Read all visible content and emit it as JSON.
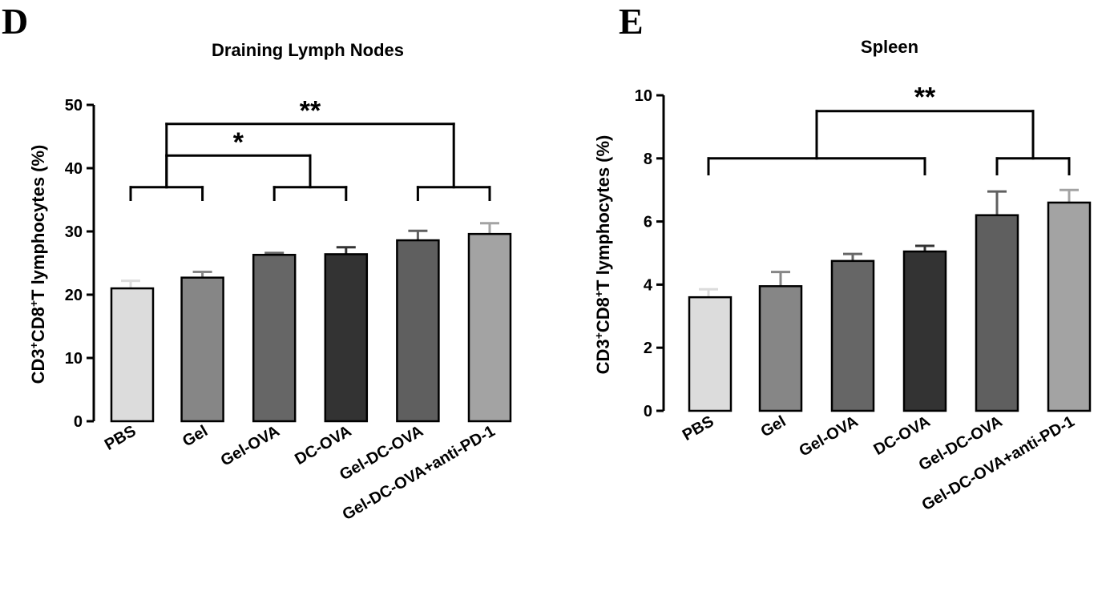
{
  "chart_data": [
    {
      "type": "bar",
      "panel": "D",
      "title": "Draining Lymph Nodes",
      "xlabel": "",
      "ylabel_parts": [
        "CD3",
        "+",
        "CD8",
        "+",
        "T lymphocytes (%)"
      ],
      "ylim": [
        0,
        50
      ],
      "yticks": [
        0,
        10,
        20,
        30,
        40,
        50
      ],
      "categories": [
        "PBS",
        "Gel",
        "Gel-OVA",
        "DC-OVA",
        "Gel-DC-OVA",
        "Gel-DC-OVA+anti-PD-1"
      ],
      "values": [
        21.0,
        22.7,
        26.3,
        26.4,
        28.6,
        29.6
      ],
      "errors": [
        1.2,
        0.9,
        0.3,
        1.1,
        1.5,
        1.7
      ],
      "colors": [
        "#dcdcdc",
        "#868686",
        "#666666",
        "#333333",
        "#5f5f5f",
        "#a3a3a3"
      ],
      "significance": [
        {
          "label": "*"
        },
        {
          "label": "**"
        }
      ]
    },
    {
      "type": "bar",
      "panel": "E",
      "title": "Spleen",
      "xlabel": "",
      "ylabel_parts": [
        "CD3",
        "+",
        "CD8",
        "+",
        "T lymphocytes (%)"
      ],
      "ylim": [
        0,
        10
      ],
      "yticks": [
        0,
        2,
        4,
        6,
        8,
        10
      ],
      "categories": [
        "PBS",
        "Gel",
        "Gel-OVA",
        "DC-OVA",
        "Gel-DC-OVA",
        "Gel-DC-OVA+anti-PD-1"
      ],
      "values": [
        3.6,
        3.95,
        4.75,
        5.05,
        6.2,
        6.6
      ],
      "errors": [
        0.25,
        0.45,
        0.22,
        0.18,
        0.75,
        0.4
      ],
      "colors": [
        "#dcdcdc",
        "#868686",
        "#666666",
        "#333333",
        "#5f5f5f",
        "#a3a3a3"
      ],
      "significance": [
        {
          "label": "**"
        }
      ]
    }
  ]
}
